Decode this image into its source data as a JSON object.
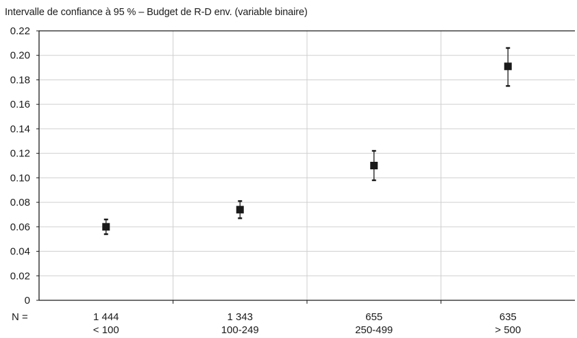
{
  "chart_data": {
    "type": "scatter",
    "title": "Intervalle de confiance à 95 % – Budget de R-D env. (variable binaire)",
    "n_prefix": "N =",
    "categories": [
      {
        "n": "1 444",
        "label": "< 100",
        "value": 0.06,
        "lower": 0.054,
        "upper": 0.066
      },
      {
        "n": "1 343",
        "label": "100-249",
        "value": 0.074,
        "lower": 0.067,
        "upper": 0.081
      },
      {
        "n": "655",
        "label": "250-499",
        "value": 0.11,
        "lower": 0.098,
        "upper": 0.122
      },
      {
        "n": "635",
        "label": "> 500",
        "value": 0.191,
        "lower": 0.175,
        "upper": 0.206
      }
    ],
    "ylim": [
      0,
      0.22
    ],
    "yticks": [
      "0",
      "0.02",
      "0.04",
      "0.06",
      "0.08",
      "0.10",
      "0.12",
      "0.14",
      "0.16",
      "0.18",
      "0.20",
      "0.22"
    ],
    "grid": true,
    "marker": "square",
    "colors": {
      "marker": "#1a1a1a",
      "grid": "#cfcfcf",
      "axis": "#1a1a1a"
    }
  }
}
